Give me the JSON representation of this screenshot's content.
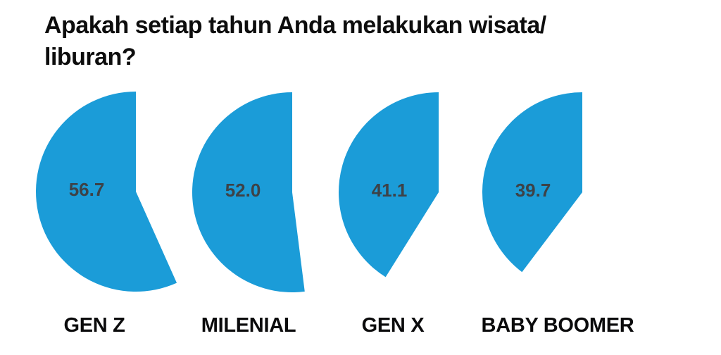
{
  "title": {
    "lines": [
      "Apakah setiap tahun Anda melakukan wisata/",
      "liburan?"
    ]
  },
  "chart_data": {
    "type": "pie",
    "title": "Apakah setiap tahun Anda melakukan wisata/liburan?",
    "categories": [
      "GEN Z",
      "MILENIAL",
      "GEN X",
      "BABY BOOMER"
    ],
    "values": [
      56.7,
      52.0,
      41.1,
      39.7
    ],
    "value_labels": [
      "56.7",
      "52.0",
      "41.1",
      "39.7"
    ],
    "unit": "percent",
    "legend": "none",
    "layout": "four separate partial pies; each blue slice equals the value percent of a full circle, drawn counterclockwise starting at 12 o'clock, remainder left blank (white notch on right side)",
    "colors": {
      "slice": "#1b9cd8",
      "value_text": "#3d4247",
      "category_text": "#0b0b0c",
      "title_text": "#0d0d0d",
      "background": "#ffffff"
    }
  }
}
